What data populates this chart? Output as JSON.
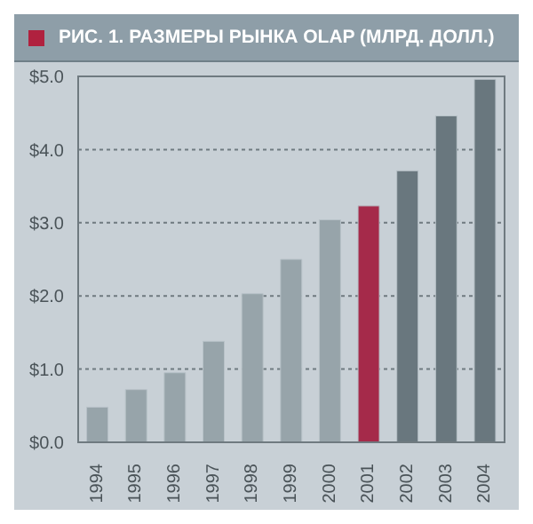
{
  "chart_data": {
    "type": "bar",
    "title": "РИС. 1. РАЗМЕРЫ РЫНКА OLAP (МЛРД. ДОЛЛ.)",
    "categories": [
      "1994",
      "1995",
      "1996",
      "1997",
      "1998",
      "1999",
      "2000",
      "2001",
      "2002",
      "2003",
      "2004"
    ],
    "values": [
      0.48,
      0.72,
      0.95,
      1.38,
      2.03,
      2.5,
      3.04,
      3.23,
      3.71,
      4.46,
      4.96
    ],
    "colors": [
      "#97a4aa",
      "#97a4aa",
      "#97a4aa",
      "#97a4aa",
      "#97a4aa",
      "#97a4aa",
      "#97a4aa",
      "#a52a4a",
      "#69777e",
      "#69777e",
      "#69777e"
    ],
    "ylim": [
      0,
      5
    ],
    "yticks": [
      {
        "value": 0,
        "label": "$0.0"
      },
      {
        "value": 1,
        "label": "$1.0"
      },
      {
        "value": 2,
        "label": "$2.0"
      },
      {
        "value": 3,
        "label": "$3.0"
      },
      {
        "value": 4,
        "label": "$4.0"
      },
      {
        "value": 5,
        "label": "$5.0"
      }
    ],
    "grid": "y"
  }
}
